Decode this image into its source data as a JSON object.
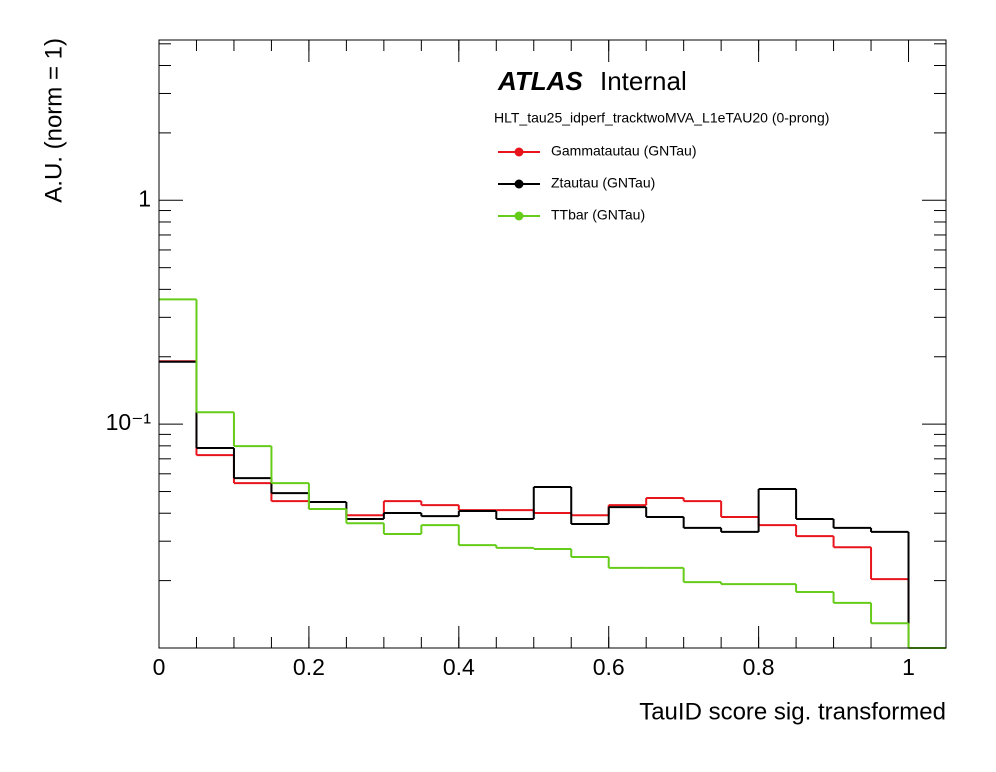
{
  "chart_data": {
    "type": "histogram",
    "title": "ATLAS",
    "subtitle": "Internal",
    "annotation": "HLT_tau25_idperf_tracktwoMVA_L1eTAU20 (0-prong)",
    "x_label": "TauID score sig. transformed",
    "y_label": "A.U. (norm = 1)",
    "bins": [
      0,
      0.05,
      0.1,
      0.15,
      0.2,
      0.25,
      0.3,
      0.35,
      0.4,
      0.45,
      0.5,
      0.55,
      0.6,
      0.65,
      0.7,
      0.75,
      0.8,
      0.85,
      0.9,
      0.95,
      1,
      1.05
    ],
    "series": [
      {
        "name": "Gammatautau (GNTau)",
        "color": "#e8141c",
        "values": [
          0.191,
          0.0727,
          0.0545,
          0.0453,
          0.0418,
          0.0392,
          0.0453,
          0.0435,
          0.0413,
          0.0413,
          0.0401,
          0.0392,
          0.0435,
          0.0468,
          0.0453,
          0.0385,
          0.0354,
          0.0316,
          0.0282,
          0.0203,
          0
        ]
      },
      {
        "name": "Ztautau (GNTau)",
        "color": "#000000",
        "values": [
          0.19,
          0.0782,
          0.0574,
          0.0492,
          0.0449,
          0.0377,
          0.0401,
          0.0388,
          0.0409,
          0.0377,
          0.0524,
          0.0358,
          0.0426,
          0.0385,
          0.0344,
          0.033,
          0.0513,
          0.0377,
          0.0344,
          0.033,
          0
        ]
      },
      {
        "name": "TTbar (GNTau)",
        "color": "#66cc1a",
        "values": [
          0.361,
          0.113,
          0.0798,
          0.0545,
          0.0418,
          0.0361,
          0.0323,
          0.0354,
          0.0288,
          0.028,
          0.0277,
          0.0255,
          0.0228,
          0.0228,
          0.0197,
          0.0193,
          0.0193,
          0.0178,
          0.0159,
          0.0129,
          0
        ]
      }
    ],
    "xlim": [
      0,
      1.05
    ],
    "xticks": [
      0,
      0.2,
      0.4,
      0.6,
      0.8,
      1
    ],
    "ylim": [
      0.01,
      5.2
    ],
    "yticks": [
      {
        "value": 0.1,
        "label": "10⁻¹"
      },
      1
    ],
    "log_y": true
  }
}
